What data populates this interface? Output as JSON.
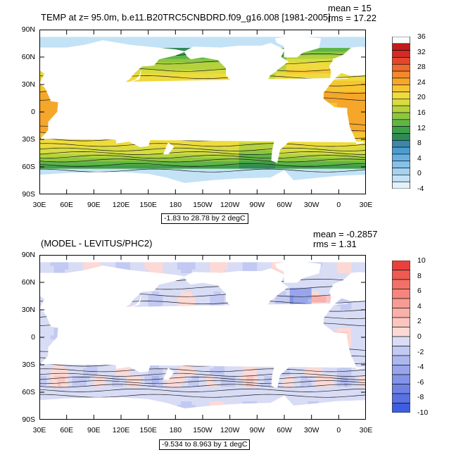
{
  "panel1": {
    "title": "TEMP at z=  95.0m, b.e11.B20TRC5CNBDRD.f09_g16.008 [1981-2005]",
    "mean_label": "mean = 15",
    "rms_label": "rms = 17.22",
    "range_label": "-1.83 to 28.78 by 2 degC"
  },
  "panel2": {
    "title": "(MODEL - LEVITUS/PHC2)",
    "mean_label": "mean = -0.2857",
    "rms_label": "rms = 1.31",
    "range_label": "-9.534 to 8.963 by 1 degC"
  },
  "chart_data": [
    {
      "type": "heatmap",
      "title": "TEMP at z=  95.0m, b.e11.B20TRC5CNBDRD.f09_g16.008 [1981-2005]",
      "units": "degC",
      "y_ticks": [
        "90N",
        "60N",
        "30N",
        "0",
        "30S",
        "60S",
        "90S"
      ],
      "x_ticks": [
        "30E",
        "60E",
        "90E",
        "120E",
        "150E",
        "180",
        "150W",
        "120W",
        "90W",
        "60W",
        "30W",
        "0",
        "30E"
      ],
      "colorbar": {
        "levels": [
          "36",
          "32",
          "28",
          "24",
          "20",
          "16",
          "12",
          "8",
          "4",
          "0",
          "-4"
        ],
        "colors": [
          "#fbfbfb",
          "#c41a1a",
          "#d42b26",
          "#e2482c",
          "#ee6a2e",
          "#f28a2a",
          "#f5a72b",
          "#f6c532",
          "#efdb3c",
          "#d7dc40",
          "#b5d23e",
          "#8cc63f",
          "#5fb546",
          "#3f9f49",
          "#2f8a55",
          "#3c88a8",
          "#4d9cd0",
          "#68afe0",
          "#86c1e8",
          "#a5d2f0",
          "#c4e2f6",
          "#e2f1fb"
        ]
      },
      "range": "-1.83 to 28.78 by 2 degC",
      "mean": 15,
      "rms": 17.22
    },
    {
      "type": "heatmap",
      "title": "(MODEL - LEVITUS/PHC2)",
      "units": "degC",
      "y_ticks": [
        "90N",
        "60N",
        "30N",
        "0",
        "30S",
        "60S",
        "90S"
      ],
      "x_ticks": [
        "30E",
        "60E",
        "90E",
        "120E",
        "150E",
        "180",
        "150W",
        "120W",
        "90W",
        "60W",
        "30W",
        "0",
        "30E"
      ],
      "colorbar": {
        "levels": [
          "10",
          "8",
          "6",
          "4",
          "2",
          "0",
          "-2",
          "-4",
          "-6",
          "-8",
          "-10"
        ],
        "colors": [
          "#e8413c",
          "#ef5a52",
          "#f27068",
          "#f5857e",
          "#f79b94",
          "#f9b0aa",
          "#fbc5c0",
          "#fcd9d5",
          "#d8dcf5",
          "#c2c9f2",
          "#adb7ef",
          "#98a5ec",
          "#8393e9",
          "#6e82e6",
          "#5971e3",
          "#3e5ee0"
        ]
      },
      "range": "-9.534 to 8.963 by 1 degC",
      "mean": -0.2857,
      "rms": 1.31
    }
  ]
}
